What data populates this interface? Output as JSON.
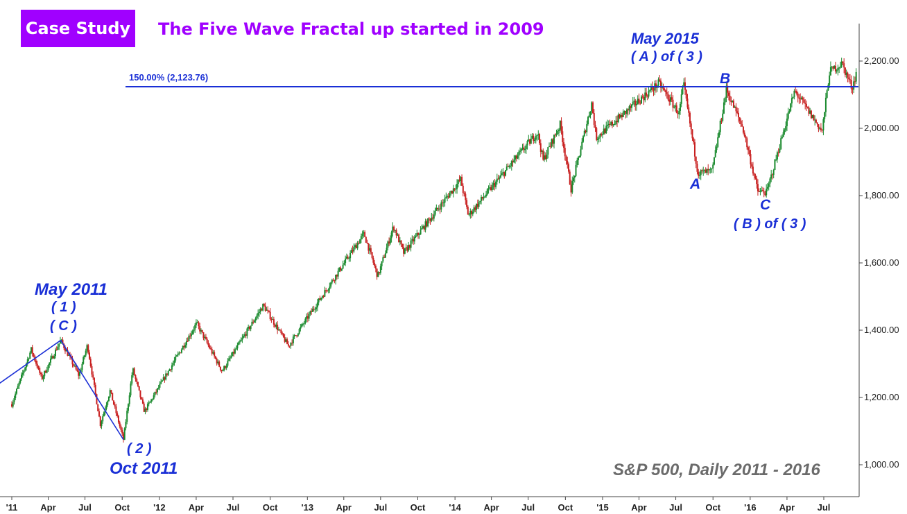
{
  "badge": {
    "label": "Case Study"
  },
  "headline": "The Five Wave Fractal up started in 2009",
  "caption": "S&P 500, Daily 2011 - 2016",
  "colors": {
    "accent": "#a000ff",
    "wave_blue": "#1a2fd6",
    "up_candle": "#1a8a2e",
    "down_candle": "#c82020"
  },
  "annotations": {
    "may2011": {
      "title": "May 2011",
      "line1": "( 1 )",
      "line2": "( C )"
    },
    "oct2011": {
      "line1": "( 2 )",
      "title": "Oct 2011"
    },
    "may2015": {
      "title": "May 2015",
      "line1": "( A ) of ( 3 )"
    },
    "wave_a": "A",
    "wave_b": "B",
    "wave_c": "C",
    "wave_b_of_3": "( B ) of ( 3 )",
    "fib_level": "150.00% (2,123.76)"
  },
  "chart_data": {
    "type": "candlestick",
    "x_axis": {
      "labels": [
        {
          "text": "'11",
          "date": "2011-01-01"
        },
        {
          "text": "Apr",
          "date": "2011-04-01"
        },
        {
          "text": "Jul",
          "date": "2011-07-01"
        },
        {
          "text": "Oct",
          "date": "2011-10-01"
        },
        {
          "text": "'12",
          "date": "2012-01-01"
        },
        {
          "text": "Apr",
          "date": "2012-04-01"
        },
        {
          "text": "Jul",
          "date": "2012-07-01"
        },
        {
          "text": "Oct",
          "date": "2012-10-01"
        },
        {
          "text": "'13",
          "date": "2013-01-01"
        },
        {
          "text": "Apr",
          "date": "2013-04-01"
        },
        {
          "text": "Jul",
          "date": "2013-07-01"
        },
        {
          "text": "Oct",
          "date": "2013-10-01"
        },
        {
          "text": "'14",
          "date": "2014-01-01"
        },
        {
          "text": "Apr",
          "date": "2014-04-01"
        },
        {
          "text": "Jul",
          "date": "2014-07-01"
        },
        {
          "text": "Oct",
          "date": "2014-10-01"
        },
        {
          "text": "'15",
          "date": "2015-01-01"
        },
        {
          "text": "Apr",
          "date": "2015-04-01"
        },
        {
          "text": "Jul",
          "date": "2015-07-01"
        },
        {
          "text": "Oct",
          "date": "2015-10-01"
        },
        {
          "text": "'16",
          "date": "2016-01-01"
        },
        {
          "text": "Apr",
          "date": "2016-04-01"
        },
        {
          "text": "Jul",
          "date": "2016-07-01"
        }
      ]
    },
    "y_axis": {
      "range": [
        950,
        2250
      ],
      "ticks": [
        {
          "value": 1000,
          "label": "1,000.00"
        },
        {
          "value": 1200,
          "label": "1,200.00"
        },
        {
          "value": 1400,
          "label": "1,400.00"
        },
        {
          "value": 1600,
          "label": "1,600.00"
        },
        {
          "value": 1800,
          "label": "1,800.00"
        },
        {
          "value": 2000,
          "label": "2,000.00"
        },
        {
          "value": 2200,
          "label": "2,200.00"
        }
      ],
      "side": "right"
    },
    "path": [
      {
        "date": "2011-01-01",
        "close": 1180
      },
      {
        "date": "2011-02-18",
        "close": 1343
      },
      {
        "date": "2011-03-16",
        "close": 1256
      },
      {
        "date": "2011-05-02",
        "close": 1370
      },
      {
        "date": "2011-06-16",
        "close": 1265
      },
      {
        "date": "2011-07-07",
        "close": 1356
      },
      {
        "date": "2011-08-08",
        "close": 1120
      },
      {
        "date": "2011-09-01",
        "close": 1220
      },
      {
        "date": "2011-10-04",
        "close": 1075
      },
      {
        "date": "2011-10-27",
        "close": 1285
      },
      {
        "date": "2011-11-25",
        "close": 1158
      },
      {
        "date": "2012-04-02",
        "close": 1420
      },
      {
        "date": "2012-06-04",
        "close": 1278
      },
      {
        "date": "2012-09-14",
        "close": 1474
      },
      {
        "date": "2012-11-15",
        "close": 1353
      },
      {
        "date": "2013-05-21",
        "close": 1687
      },
      {
        "date": "2013-06-24",
        "close": 1560
      },
      {
        "date": "2013-08-02",
        "close": 1709
      },
      {
        "date": "2013-08-27",
        "close": 1630
      },
      {
        "date": "2014-01-15",
        "close": 1848
      },
      {
        "date": "2014-02-03",
        "close": 1741
      },
      {
        "date": "2014-07-24",
        "close": 1988
      },
      {
        "date": "2014-08-07",
        "close": 1905
      },
      {
        "date": "2014-09-18",
        "close": 2011
      },
      {
        "date": "2014-10-15",
        "close": 1820
      },
      {
        "date": "2014-12-05",
        "close": 2075
      },
      {
        "date": "2014-12-16",
        "close": 1972
      },
      {
        "date": "2015-05-20",
        "close": 2134
      },
      {
        "date": "2015-07-09",
        "close": 2044
      },
      {
        "date": "2015-07-20",
        "close": 2132
      },
      {
        "date": "2015-08-25",
        "close": 1867
      },
      {
        "date": "2015-09-29",
        "close": 1872
      },
      {
        "date": "2015-11-03",
        "close": 2116
      },
      {
        "date": "2015-12-14",
        "close": 2000
      },
      {
        "date": "2016-01-20",
        "close": 1812
      },
      {
        "date": "2016-02-11",
        "close": 1810
      },
      {
        "date": "2016-04-20",
        "close": 2111
      },
      {
        "date": "2016-06-27",
        "close": 1991
      },
      {
        "date": "2016-07-15",
        "close": 2168
      },
      {
        "date": "2016-08-15",
        "close": 2193
      },
      {
        "date": "2016-09-09",
        "close": 2120
      },
      {
        "date": "2016-09-22",
        "close": 2177
      },
      {
        "date": "2016-10-05",
        "close": 2130
      }
    ],
    "fib_line": {
      "label": "150.00% (2,123.76)",
      "value": 2123.76
    },
    "wave_lines": [
      {
        "from": {
          "date": "2010-11-15",
          "value": 1228
        },
        "to": {
          "date": "2011-05-02",
          "value": 1370
        }
      },
      {
        "from": {
          "date": "2011-05-02",
          "value": 1370
        },
        "to": {
          "date": "2011-10-04",
          "value": 1075
        }
      }
    ],
    "title": "The Five Wave Fractal up started in 2009",
    "grid": false,
    "legend": "none"
  }
}
